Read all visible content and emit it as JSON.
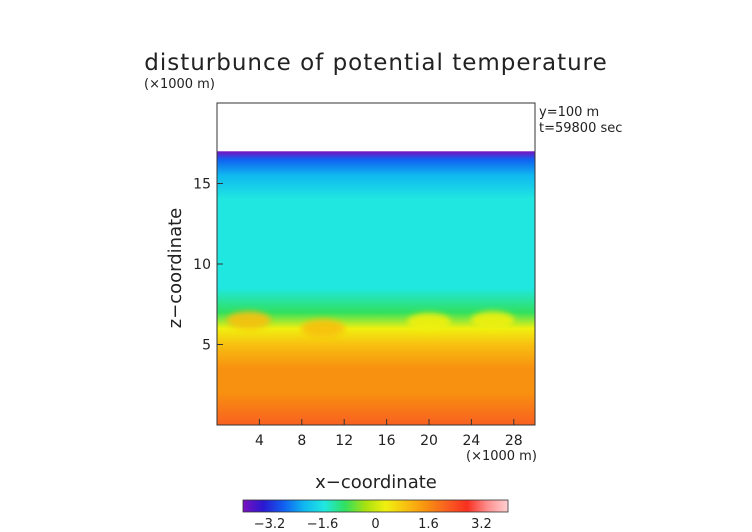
{
  "chart_data": {
    "type": "heatmap",
    "title": "disturbunce of potential temperature",
    "xlabel": "x−coordinate",
    "ylabel": "z−coordinate",
    "x_unit": "(×1000 m)",
    "y_unit": "(×1000 m)",
    "annotations": [
      "y=100 m",
      "t=59800 sec"
    ],
    "xlim": [
      0,
      30
    ],
    "ylim": [
      0,
      20
    ],
    "x_ticks": [
      4,
      8,
      12,
      16,
      20,
      24,
      28
    ],
    "x_tick_labels": [
      "4",
      "8",
      "12",
      "16",
      "20",
      "24",
      "28"
    ],
    "y_ticks": [
      5,
      10,
      15
    ],
    "y_tick_labels": [
      "5",
      "10",
      "15"
    ],
    "domain_top": 17,
    "colorbar": {
      "min": -4,
      "max": 4,
      "ticks": [
        -3.2,
        -1.6,
        0,
        1.6,
        3.2
      ],
      "tick_labels": [
        "−3.2",
        "−1.6",
        "0",
        "1.6",
        "3.2"
      ],
      "colors": [
        "#7a10c0",
        "#2a18d0",
        "#1060f0",
        "#10b8f0",
        "#20e8e0",
        "#30e060",
        "#a8e010",
        "#f0f010",
        "#f8c010",
        "#f89010",
        "#f86020",
        "#f83020",
        "#ff9090",
        "#ffd0d0"
      ]
    },
    "profile": [
      {
        "z": 0.0,
        "value": 1.9
      },
      {
        "z": 2.0,
        "value": 1.7
      },
      {
        "z": 3.5,
        "value": 1.2
      },
      {
        "z": 5.0,
        "value": 0.7
      },
      {
        "z": 6.0,
        "value": 0.1
      },
      {
        "z": 7.0,
        "value": -0.9
      },
      {
        "z": 8.5,
        "value": -1.3
      },
      {
        "z": 14.0,
        "value": -1.4
      },
      {
        "z": 15.5,
        "value": -1.9
      },
      {
        "z": 16.5,
        "value": -2.6
      },
      {
        "z": 17.0,
        "value": -3.6
      }
    ],
    "features": [
      {
        "x": 3.0,
        "z": 6.5,
        "value": 0.9
      },
      {
        "x": 10.0,
        "z": 6.0,
        "value": 0.8
      },
      {
        "x": 20.0,
        "z": 6.4,
        "value": 0.1
      },
      {
        "x": 26.0,
        "z": 6.5,
        "value": 0.1
      }
    ]
  }
}
